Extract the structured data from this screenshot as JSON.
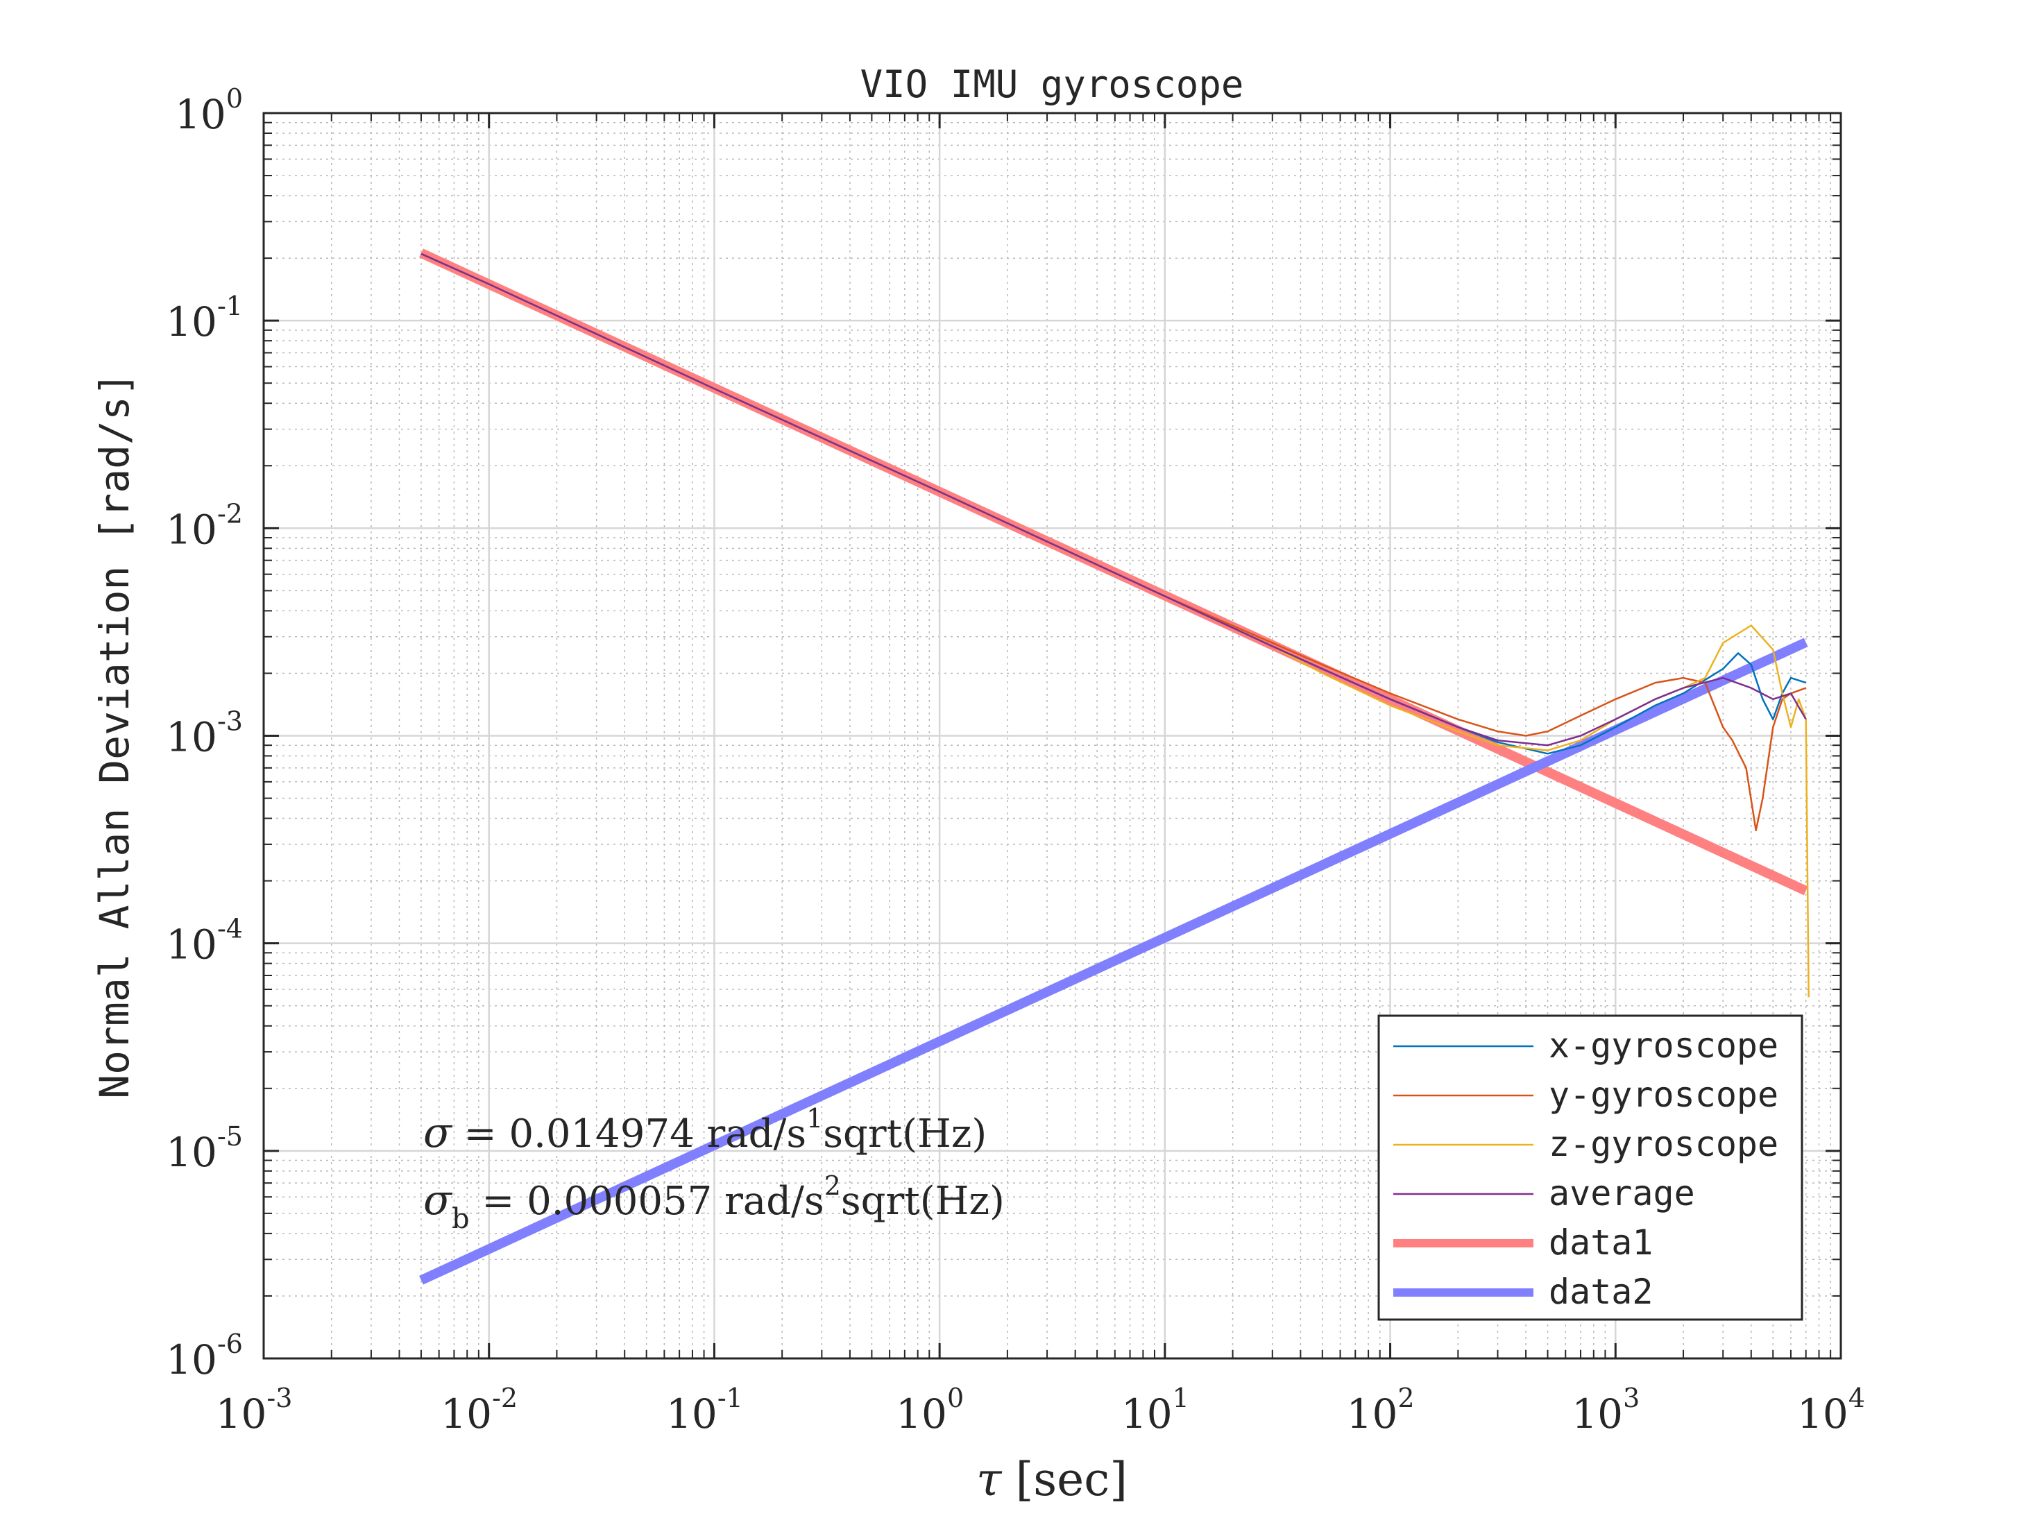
{
  "chart_data": {
    "type": "line",
    "title": "VIO IMU gyroscope",
    "xlabel_symbol": "τ",
    "xlabel_unit": "[sec]",
    "ylabel": "Normal Allan Deviation [rad/s]",
    "xscale": "log",
    "yscale": "log",
    "xlim": [
      0.001,
      10000
    ],
    "ylim": [
      1e-06,
      1
    ],
    "grid": true,
    "minor_grid": true,
    "legend_position": "bottom-right",
    "x_ticks": [
      {
        "base": "10",
        "exp": "-3"
      },
      {
        "base": "10",
        "exp": "-2"
      },
      {
        "base": "10",
        "exp": "-1"
      },
      {
        "base": "10",
        "exp": "0"
      },
      {
        "base": "10",
        "exp": "1"
      },
      {
        "base": "10",
        "exp": "2"
      },
      {
        "base": "10",
        "exp": "3"
      },
      {
        "base": "10",
        "exp": "4"
      }
    ],
    "y_ticks": [
      {
        "base": "10",
        "exp": "-6"
      },
      {
        "base": "10",
        "exp": "-5"
      },
      {
        "base": "10",
        "exp": "-4"
      },
      {
        "base": "10",
        "exp": "-3"
      },
      {
        "base": "10",
        "exp": "-2"
      },
      {
        "base": "10",
        "exp": "-1"
      },
      {
        "base": "10",
        "exp": "0"
      }
    ],
    "annotations": [
      {
        "symbol": "σ",
        "sub": "",
        "text": " = 0.014974 rad/s",
        "sup": "1",
        "tail": "sqrt(Hz)"
      },
      {
        "symbol": "σ",
        "sub": "b",
        "text": " = 0.000057 rad/s",
        "sup": "2",
        "tail": "sqrt(Hz)"
      }
    ],
    "series": [
      {
        "name": "x-gyroscope",
        "color": "#0072BD",
        "width": 2.5,
        "x": [
          0.005,
          0.01,
          0.1,
          1,
          10,
          30,
          50,
          100,
          200,
          300,
          500,
          700,
          1000,
          1500,
          2000,
          3000,
          3500,
          4000,
          4500,
          5000,
          5500,
          6000,
          7000
        ],
        "y": [
          0.21,
          0.15,
          0.047,
          0.015,
          0.0047,
          0.0027,
          0.0021,
          0.0015,
          0.0011,
          0.00093,
          0.00082,
          0.0009,
          0.0011,
          0.0014,
          0.0016,
          0.0021,
          0.0025,
          0.0022,
          0.0015,
          0.0012,
          0.0016,
          0.0019,
          0.0018
        ]
      },
      {
        "name": "y-gyroscope",
        "color": "#D95319",
        "width": 2.5,
        "x": [
          0.005,
          0.01,
          0.1,
          1,
          10,
          30,
          50,
          100,
          200,
          300,
          400,
          500,
          700,
          1000,
          1500,
          2000,
          2500,
          3000,
          3300,
          3800,
          4200,
          4500,
          5000,
          5500,
          6000,
          7000
        ],
        "y": [
          0.21,
          0.15,
          0.047,
          0.015,
          0.0047,
          0.0028,
          0.0022,
          0.0016,
          0.0012,
          0.00105,
          0.001,
          0.00105,
          0.00125,
          0.0015,
          0.0018,
          0.0019,
          0.0018,
          0.0011,
          0.00095,
          0.0007,
          0.00035,
          0.0005,
          0.0011,
          0.0015,
          0.0016,
          0.0017
        ]
      },
      {
        "name": "z-gyroscope",
        "color": "#EDB120",
        "width": 2.5,
        "x": [
          0.005,
          0.01,
          0.1,
          1,
          10,
          30,
          50,
          100,
          200,
          300,
          500,
          700,
          1000,
          1500,
          2000,
          2500,
          3000,
          4000,
          5000,
          5500,
          6000,
          6500,
          7000,
          7200
        ],
        "y": [
          0.21,
          0.15,
          0.047,
          0.015,
          0.0047,
          0.0027,
          0.002,
          0.0014,
          0.00105,
          0.0009,
          0.00085,
          0.00095,
          0.0012,
          0.0015,
          0.0017,
          0.0019,
          0.0028,
          0.0034,
          0.0026,
          0.0016,
          0.0011,
          0.0015,
          0.0012,
          5.5e-05
        ]
      },
      {
        "name": "average",
        "color": "#7E2F8E",
        "width": 2.5,
        "x": [
          0.005,
          0.01,
          0.1,
          1,
          10,
          30,
          50,
          100,
          200,
          300,
          500,
          700,
          1000,
          1500,
          2000,
          3000,
          4000,
          5000,
          6000,
          7000
        ],
        "y": [
          0.21,
          0.15,
          0.047,
          0.015,
          0.0047,
          0.0027,
          0.0021,
          0.0015,
          0.0011,
          0.00095,
          0.0009,
          0.001,
          0.0012,
          0.0015,
          0.0017,
          0.0019,
          0.0017,
          0.0015,
          0.0016,
          0.0012
        ]
      },
      {
        "name": "data1",
        "color": "#FF8080",
        "width": 14,
        "x": [
          0.005,
          7000
        ],
        "y": [
          0.2117,
          0.000179
        ]
      },
      {
        "name": "data2",
        "color": "#8080FF",
        "width": 14,
        "x": [
          0.005,
          7000
        ],
        "y": [
          2.38e-06,
          0.00282
        ]
      }
    ]
  }
}
